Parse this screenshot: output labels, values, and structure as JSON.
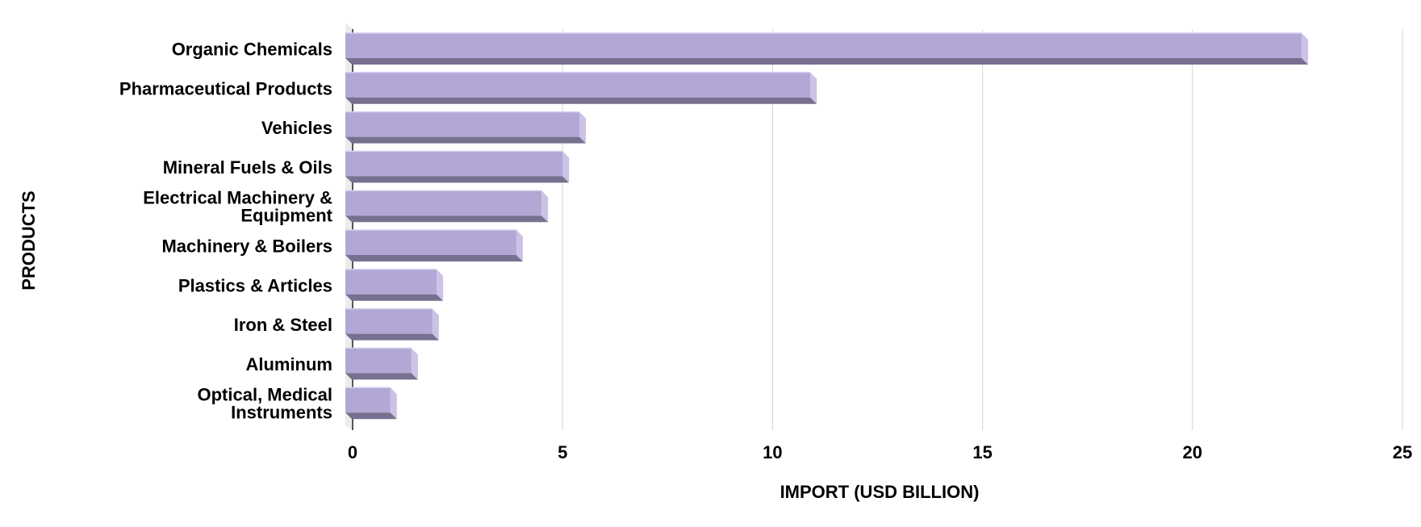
{
  "chart_data": {
    "type": "bar",
    "orientation": "horizontal",
    "style": "3d",
    "title": "",
    "xlabel": "IMPORT (USD BILLION)",
    "ylabel": "PRODUCTS",
    "xlim": [
      0,
      25
    ],
    "xticks": [
      "0",
      "5",
      "10",
      "15",
      "20",
      "25"
    ],
    "grid": true,
    "legend": "none",
    "bar_color": "#b3a7d6",
    "bar_shadow_color": "#77708f",
    "categories": [
      [
        "Organic Chemicals"
      ],
      [
        "Pharmaceutical Products"
      ],
      [
        "Vehicles"
      ],
      [
        "Mineral Fuels & Oils"
      ],
      [
        "Electrical Machinery &",
        "Equipment"
      ],
      [
        "Machinery & Boilers"
      ],
      [
        "Plastics & Articles"
      ],
      [
        "Iron & Steel"
      ],
      [
        "Aluminum"
      ],
      [
        "Optical, Medical",
        "Instruments"
      ]
    ],
    "values": [
      22.6,
      10.9,
      5.4,
      5.0,
      4.5,
      3.9,
      2.0,
      1.9,
      1.4,
      0.9
    ]
  }
}
